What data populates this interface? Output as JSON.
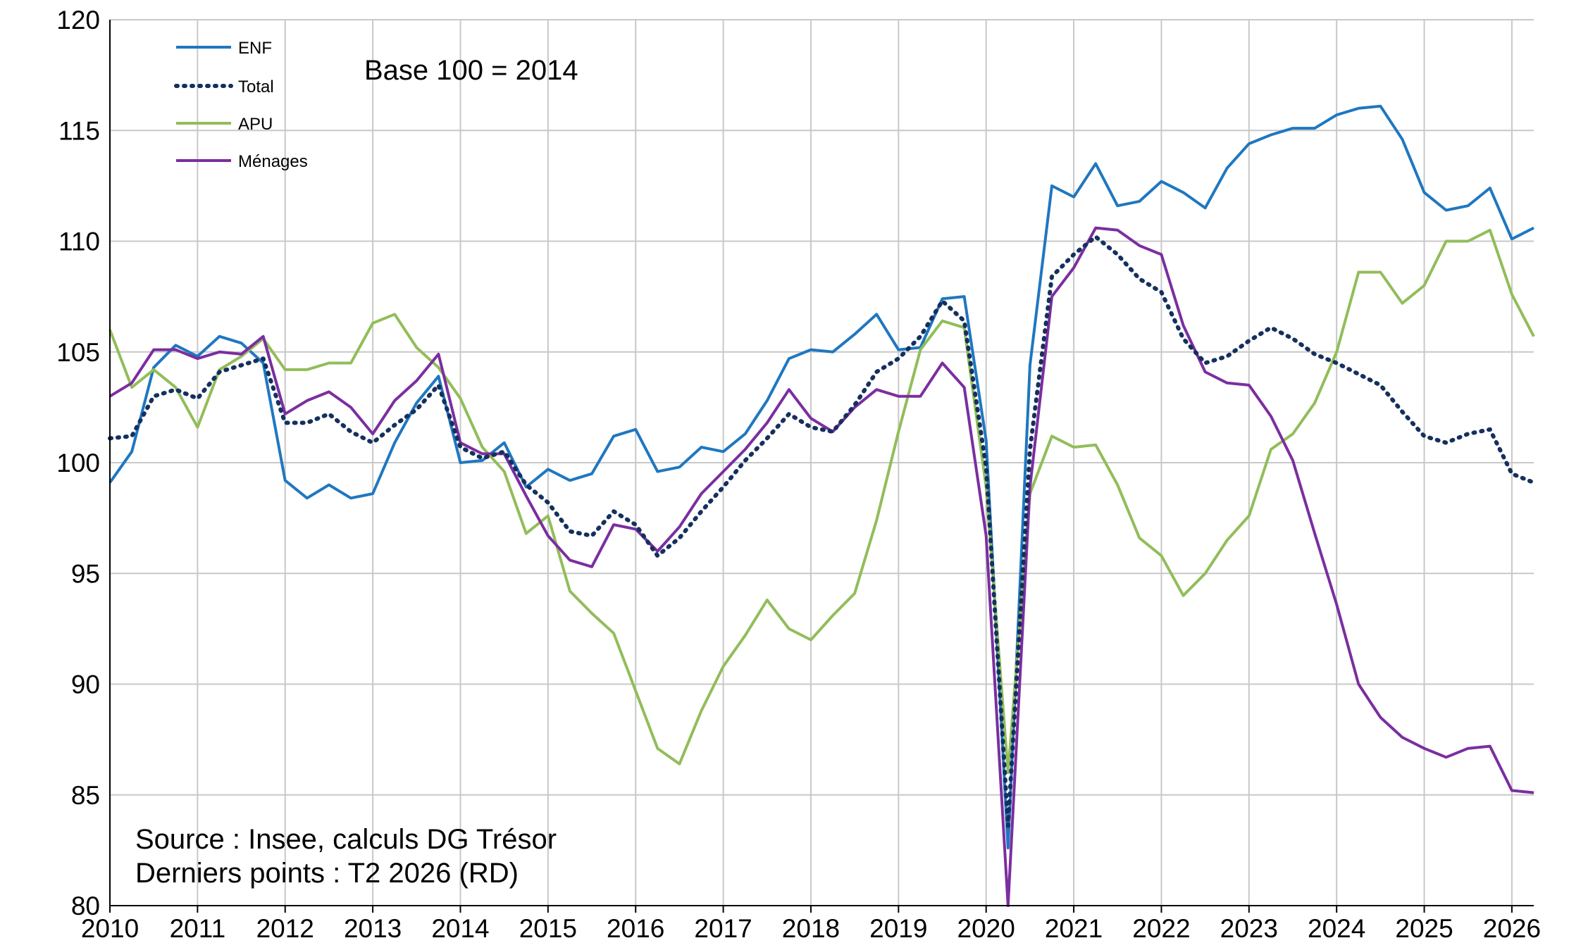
{
  "chart_data": {
    "type": "line",
    "title": "",
    "xlabel": "",
    "ylabel": "",
    "x_ticks": [
      "2010",
      "2011",
      "2012",
      "2013",
      "2014",
      "2015",
      "2016",
      "2017",
      "2018",
      "2019",
      "2020",
      "2021",
      "2022",
      "2023",
      "2024",
      "2025",
      "2026"
    ],
    "y_ticks": [
      80,
      85,
      90,
      95,
      100,
      105,
      110,
      115,
      120
    ],
    "xlim": [
      2010,
      2026.25
    ],
    "ylim": [
      80,
      120
    ],
    "grid": true,
    "legend_position": "top-left",
    "annotation_base": "Base 100 = 2014",
    "source_note": "Source : Insee, calculs DG Trésor",
    "last_points_note": "Derniers points : T2 2026 (RD)",
    "x": [
      2010.0,
      2010.25,
      2010.5,
      2010.75,
      2011.0,
      2011.25,
      2011.5,
      2011.75,
      2012.0,
      2012.25,
      2012.5,
      2012.75,
      2013.0,
      2013.25,
      2013.5,
      2013.75,
      2014.0,
      2014.25,
      2014.5,
      2014.75,
      2015.0,
      2015.25,
      2015.5,
      2015.75,
      2016.0,
      2016.25,
      2016.5,
      2016.75,
      2017.0,
      2017.25,
      2017.5,
      2017.75,
      2018.0,
      2018.25,
      2018.5,
      2018.75,
      2019.0,
      2019.25,
      2019.5,
      2019.75,
      2020.0,
      2020.25,
      2020.5,
      2020.75,
      2021.0,
      2021.25,
      2021.5,
      2021.75,
      2022.0,
      2022.25,
      2022.5,
      2022.75,
      2023.0,
      2023.25,
      2023.5,
      2023.75,
      2024.0,
      2024.25,
      2024.5,
      2024.75,
      2025.0,
      2025.25,
      2025.5,
      2025.75,
      2026.0,
      2026.25
    ],
    "series": [
      {
        "name": "ENF",
        "color": "#1f77c0",
        "style": "solid",
        "values": [
          99.1,
          100.5,
          104.3,
          105.3,
          104.8,
          105.7,
          105.4,
          104.5,
          99.2,
          98.4,
          99.0,
          98.4,
          98.6,
          100.9,
          102.7,
          103.9,
          100.0,
          100.1,
          100.9,
          98.9,
          99.7,
          99.2,
          99.5,
          101.2,
          101.5,
          99.6,
          99.8,
          100.7,
          100.5,
          101.3,
          102.8,
          104.7,
          105.1,
          105.0,
          105.8,
          106.7,
          105.1,
          105.2,
          107.4,
          107.5,
          101.0,
          82.6,
          104.4,
          112.5,
          112.0,
          113.5,
          111.6,
          111.8,
          112.7,
          112.2,
          111.5,
          113.3,
          114.4,
          114.8,
          115.1,
          115.1,
          115.7,
          116.0,
          116.1,
          114.6,
          112.2,
          111.4,
          111.6,
          112.4,
          110.1,
          110.6
        ]
      },
      {
        "name": "Total",
        "color": "#15305e",
        "style": "dotted",
        "values": [
          101.1,
          101.2,
          103.0,
          103.3,
          102.9,
          104.1,
          104.4,
          104.7,
          101.8,
          101.8,
          102.2,
          101.4,
          100.9,
          101.7,
          102.4,
          103.5,
          100.7,
          100.2,
          100.5,
          99.0,
          98.2,
          96.9,
          96.7,
          97.8,
          97.2,
          95.8,
          96.6,
          97.8,
          98.9,
          100.1,
          101.1,
          102.2,
          101.6,
          101.4,
          102.6,
          104.1,
          104.7,
          105.7,
          107.3,
          106.4,
          99.8,
          83.6,
          100.6,
          108.4,
          109.4,
          110.2,
          109.4,
          108.3,
          107.7,
          105.6,
          104.5,
          104.8,
          105.5,
          106.1,
          105.6,
          104.9,
          104.5,
          104.0,
          103.5,
          102.3,
          101.2,
          100.9,
          101.3,
          101.5,
          99.5,
          99.1
        ]
      },
      {
        "name": "APU",
        "color": "#92bd5a",
        "style": "solid",
        "values": [
          106.0,
          103.4,
          104.2,
          103.4,
          101.6,
          104.2,
          104.8,
          105.6,
          104.2,
          104.2,
          104.5,
          104.5,
          106.3,
          106.7,
          105.2,
          104.3,
          102.9,
          100.7,
          99.6,
          96.8,
          97.6,
          94.2,
          93.2,
          92.3,
          89.7,
          87.1,
          86.4,
          88.8,
          90.8,
          92.2,
          93.8,
          92.5,
          92.0,
          93.1,
          94.1,
          97.4,
          101.4,
          105.1,
          106.4,
          106.1,
          98.9,
          86.0,
          98.6,
          101.2,
          100.7,
          100.8,
          99.0,
          96.6,
          95.8,
          94.0,
          95.0,
          96.5,
          97.6,
          100.6,
          101.3,
          102.7,
          105.0,
          108.6,
          108.6,
          107.2,
          108.0,
          110.0,
          110.0,
          110.5,
          107.6,
          105.7
        ]
      },
      {
        "name": "Ménages",
        "color": "#7b2ea0",
        "style": "solid",
        "values": [
          103.0,
          103.6,
          105.1,
          105.1,
          104.7,
          105.0,
          104.9,
          105.7,
          102.2,
          102.8,
          103.2,
          102.5,
          101.3,
          102.8,
          103.7,
          104.9,
          100.9,
          100.4,
          100.4,
          98.5,
          96.7,
          95.6,
          95.3,
          97.2,
          97.0,
          96.0,
          97.1,
          98.6,
          99.6,
          100.6,
          101.8,
          103.3,
          102.0,
          101.4,
          102.5,
          103.3,
          103.0,
          103.0,
          104.5,
          103.4,
          96.7,
          80.0,
          98.9,
          107.5,
          108.8,
          110.6,
          110.5,
          109.8,
          109.4,
          106.2,
          104.1,
          103.6,
          103.5,
          102.1,
          100.1,
          96.8,
          93.6,
          90.0,
          88.5,
          87.6,
          87.1,
          86.7,
          87.1,
          87.2,
          85.2,
          85.1
        ]
      }
    ]
  }
}
